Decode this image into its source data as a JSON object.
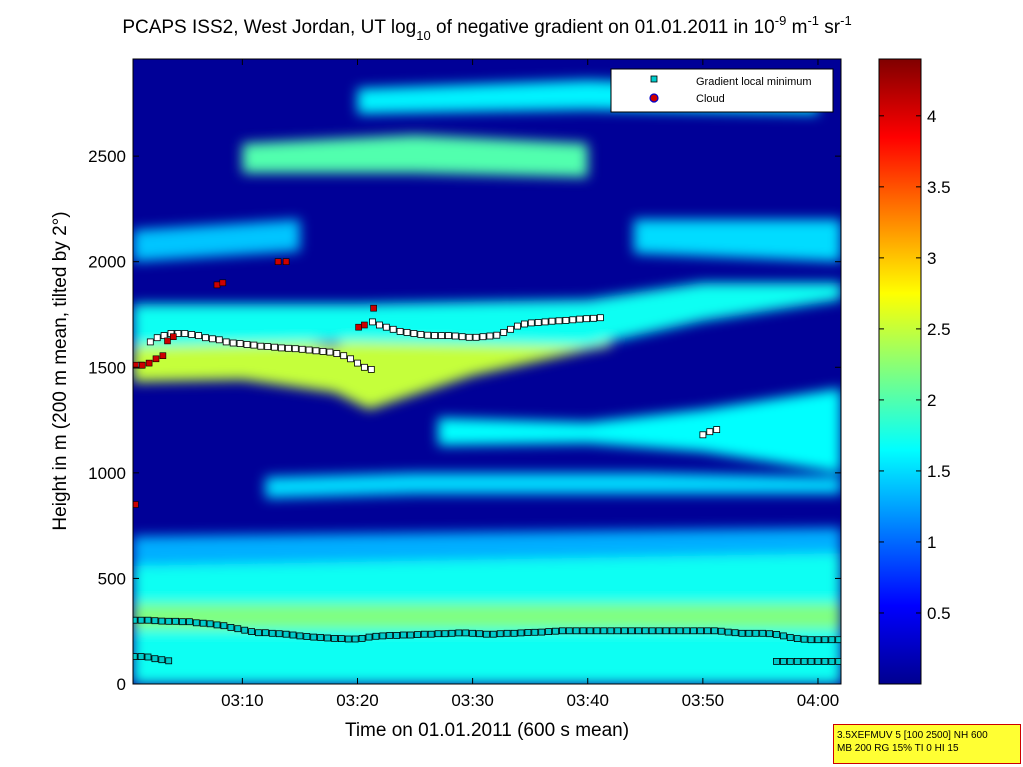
{
  "chart_data": {
    "type": "heatmap",
    "title": "PCAPS ISS2, West Jordan, UT log10 of negative gradient on 01.01.2011 in 10-9 m-1 sr-1",
    "title_parts": {
      "prefix": "PCAPS ISS2, West Jordan, UT log",
      "log_base": "10",
      "middle": " of negative gradient on 01.01.2011 in 10",
      "exp1": "-9",
      "unit1": " m",
      "exp2": "-1",
      "unit2": " sr",
      "exp3": "-1"
    },
    "xlabel": "Time on 01.01.2011 (600 s mean)",
    "ylabel": "Height in m (200 m mean, tilted by 2°)",
    "x_ticks": [
      "03:10",
      "03:20",
      "03:30",
      "03:40",
      "03:50",
      "04:00"
    ],
    "y_ticks": [
      "0",
      "500",
      "1000",
      "1500",
      "2000",
      "2500"
    ],
    "x_range_minutes": [
      0.5,
      62
    ],
    "y_range_m": [
      0,
      2960
    ],
    "colorbar_ticks": [
      "0.5",
      "1",
      "1.5",
      "2",
      "2.5",
      "3",
      "3.5",
      "4"
    ],
    "colorbar_range": [
      0,
      4.4
    ],
    "colormap": "jet",
    "background_field_level": 0.1,
    "layers": [
      {
        "x": [
          0.5,
          62
        ],
        "y0": [
          0,
          0
        ],
        "y1": [
          80,
          80
        ],
        "level": 2.25
      },
      {
        "x": [
          0.5,
          62
        ],
        "y0": [
          0,
          0
        ],
        "y1": [
          560,
          620
        ],
        "level": 1.7
      },
      {
        "x": [
          0.5,
          62
        ],
        "y0": [
          260,
          260
        ],
        "y1": [
          380,
          380
        ],
        "level": 2.2
      },
      {
        "x": [
          0.5,
          62
        ],
        "y0": [
          560,
          620
        ],
        "y1": [
          700,
          740
        ],
        "level": 1.3
      },
      {
        "x": [
          12,
          25,
          45,
          62
        ],
        "y0": [
          880,
          900,
          900,
          900
        ],
        "y1": [
          980,
          1000,
          1000,
          980
        ],
        "level": 1.5
      },
      {
        "x": [
          27,
          40,
          50,
          62
        ],
        "y0": [
          1130,
          1140,
          1100,
          1000
        ],
        "y1": [
          1260,
          1240,
          1300,
          1400
        ],
        "level": 1.65
      },
      {
        "x": [
          0.5,
          10,
          18,
          21,
          30,
          40,
          42
        ],
        "y0": [
          1430,
          1440,
          1380,
          1300,
          1460,
          1580,
          1600
        ],
        "y1": [
          1660,
          1660,
          1600,
          1700,
          1700,
          1790,
          1800
        ],
        "level": 2.5
      },
      {
        "x": [
          0.5,
          20,
          40,
          50,
          62
        ],
        "y0": [
          1600,
          1620,
          1600,
          1720,
          1820
        ],
        "y1": [
          1800,
          1800,
          1820,
          1900,
          1900
        ],
        "level": 1.7
      },
      {
        "x": [
          0.5,
          15
        ],
        "y0": [
          2000,
          2050
        ],
        "y1": [
          2150,
          2200
        ],
        "level": 1.4
      },
      {
        "x": [
          44,
          62
        ],
        "y0": [
          2040,
          2000
        ],
        "y1": [
          2200,
          2200
        ],
        "level": 1.5
      },
      {
        "x": [
          10,
          25,
          40
        ],
        "y0": [
          2420,
          2420,
          2400
        ],
        "y1": [
          2560,
          2600,
          2560
        ],
        "level": 2.0
      },
      {
        "x": [
          20,
          40,
          60
        ],
        "y0": [
          2700,
          2720,
          2700
        ],
        "y1": [
          2820,
          2860,
          2820
        ],
        "level": 1.6
      }
    ],
    "series": [
      {
        "name": "Gradient local minimum",
        "marker": "square",
        "color": "#00cccc",
        "points": [
          {
            "x": 0.6,
            "y": 302
          },
          {
            "x": 1.2,
            "y": 302
          },
          {
            "x": 1.8,
            "y": 302
          },
          {
            "x": 2.4,
            "y": 300
          },
          {
            "x": 3.0,
            "y": 298
          },
          {
            "x": 3.6,
            "y": 297
          },
          {
            "x": 4.2,
            "y": 297
          },
          {
            "x": 4.8,
            "y": 295
          },
          {
            "x": 5.4,
            "y": 295
          },
          {
            "x": 6.0,
            "y": 290
          },
          {
            "x": 6.6,
            "y": 288
          },
          {
            "x": 7.2,
            "y": 285
          },
          {
            "x": 7.8,
            "y": 280
          },
          {
            "x": 8.4,
            "y": 276
          },
          {
            "x": 9.0,
            "y": 268
          },
          {
            "x": 9.6,
            "y": 262
          },
          {
            "x": 10.2,
            "y": 255
          },
          {
            "x": 10.8,
            "y": 248
          },
          {
            "x": 11.4,
            "y": 243
          },
          {
            "x": 12.0,
            "y": 243
          },
          {
            "x": 12.6,
            "y": 240
          },
          {
            "x": 13.2,
            "y": 238
          },
          {
            "x": 13.8,
            "y": 236
          },
          {
            "x": 14.4,
            "y": 232
          },
          {
            "x": 15.0,
            "y": 228
          },
          {
            "x": 15.6,
            "y": 225
          },
          {
            "x": 16.2,
            "y": 222
          },
          {
            "x": 16.8,
            "y": 220
          },
          {
            "x": 17.4,
            "y": 218
          },
          {
            "x": 18.0,
            "y": 216
          },
          {
            "x": 18.6,
            "y": 215
          },
          {
            "x": 19.2,
            "y": 213
          },
          {
            "x": 19.8,
            "y": 213
          },
          {
            "x": 20.4,
            "y": 216
          },
          {
            "x": 21.0,
            "y": 222
          },
          {
            "x": 21.6,
            "y": 226
          },
          {
            "x": 22.2,
            "y": 228
          },
          {
            "x": 22.8,
            "y": 230
          },
          {
            "x": 23.4,
            "y": 230
          },
          {
            "x": 24.0,
            "y": 232
          },
          {
            "x": 24.6,
            "y": 232
          },
          {
            "x": 25.2,
            "y": 234
          },
          {
            "x": 25.8,
            "y": 236
          },
          {
            "x": 26.4,
            "y": 236
          },
          {
            "x": 27.0,
            "y": 238
          },
          {
            "x": 27.6,
            "y": 238
          },
          {
            "x": 28.2,
            "y": 240
          },
          {
            "x": 28.8,
            "y": 242
          },
          {
            "x": 29.4,
            "y": 242
          },
          {
            "x": 30.0,
            "y": 240
          },
          {
            "x": 30.6,
            "y": 238
          },
          {
            "x": 31.2,
            "y": 236
          },
          {
            "x": 31.8,
            "y": 236
          },
          {
            "x": 32.4,
            "y": 238
          },
          {
            "x": 33.0,
            "y": 240
          },
          {
            "x": 33.6,
            "y": 240
          },
          {
            "x": 34.2,
            "y": 242
          },
          {
            "x": 34.8,
            "y": 244
          },
          {
            "x": 35.4,
            "y": 245
          },
          {
            "x": 36.0,
            "y": 246
          },
          {
            "x": 36.6,
            "y": 248
          },
          {
            "x": 37.2,
            "y": 250
          },
          {
            "x": 37.8,
            "y": 252
          },
          {
            "x": 38.4,
            "y": 252
          },
          {
            "x": 39.0,
            "y": 252
          },
          {
            "x": 39.6,
            "y": 252
          },
          {
            "x": 40.2,
            "y": 252
          },
          {
            "x": 40.8,
            "y": 252
          },
          {
            "x": 41.4,
            "y": 252
          },
          {
            "x": 42.0,
            "y": 252
          },
          {
            "x": 42.6,
            "y": 252
          },
          {
            "x": 43.2,
            "y": 252
          },
          {
            "x": 43.8,
            "y": 252
          },
          {
            "x": 44.4,
            "y": 252
          },
          {
            "x": 45.0,
            "y": 252
          },
          {
            "x": 45.6,
            "y": 252
          },
          {
            "x": 46.2,
            "y": 252
          },
          {
            "x": 46.8,
            "y": 252
          },
          {
            "x": 47.4,
            "y": 252
          },
          {
            "x": 48.0,
            "y": 252
          },
          {
            "x": 48.6,
            "y": 252
          },
          {
            "x": 49.2,
            "y": 252
          },
          {
            "x": 49.8,
            "y": 252
          },
          {
            "x": 50.4,
            "y": 252
          },
          {
            "x": 51.0,
            "y": 252
          },
          {
            "x": 51.6,
            "y": 250
          },
          {
            "x": 52.2,
            "y": 246
          },
          {
            "x": 52.8,
            "y": 243
          },
          {
            "x": 53.4,
            "y": 240
          },
          {
            "x": 54.0,
            "y": 240
          },
          {
            "x": 54.6,
            "y": 240
          },
          {
            "x": 55.2,
            "y": 240
          },
          {
            "x": 55.8,
            "y": 238
          },
          {
            "x": 56.4,
            "y": 235
          },
          {
            "x": 57.0,
            "y": 228
          },
          {
            "x": 57.6,
            "y": 220
          },
          {
            "x": 58.2,
            "y": 215
          },
          {
            "x": 58.8,
            "y": 212
          },
          {
            "x": 59.4,
            "y": 210
          },
          {
            "x": 60.0,
            "y": 210
          },
          {
            "x": 60.6,
            "y": 210
          },
          {
            "x": 61.2,
            "y": 210
          },
          {
            "x": 61.8,
            "y": 210
          },
          {
            "x": 0.6,
            "y": 130
          },
          {
            "x": 1.2,
            "y": 130
          },
          {
            "x": 1.8,
            "y": 128
          },
          {
            "x": 2.4,
            "y": 120
          },
          {
            "x": 3.0,
            "y": 115
          },
          {
            "x": 3.6,
            "y": 110
          },
          {
            "x": 56.4,
            "y": 107
          },
          {
            "x": 57.0,
            "y": 107
          },
          {
            "x": 57.6,
            "y": 107
          },
          {
            "x": 58.2,
            "y": 107
          },
          {
            "x": 58.8,
            "y": 107
          },
          {
            "x": 59.4,
            "y": 107
          },
          {
            "x": 60.0,
            "y": 107
          },
          {
            "x": 60.6,
            "y": 107
          },
          {
            "x": 61.2,
            "y": 107
          },
          {
            "x": 61.8,
            "y": 107
          },
          {
            "x": 1.2,
            "y": 1510
          },
          {
            "x": 2.0,
            "y": 1620
          },
          {
            "x": 2.6,
            "y": 1640
          },
          {
            "x": 3.2,
            "y": 1650
          },
          {
            "x": 3.8,
            "y": 1660
          },
          {
            "x": 4.4,
            "y": 1660
          },
          {
            "x": 5.0,
            "y": 1660
          },
          {
            "x": 5.6,
            "y": 1655
          },
          {
            "x": 6.2,
            "y": 1650
          },
          {
            "x": 6.8,
            "y": 1640
          },
          {
            "x": 7.4,
            "y": 1635
          },
          {
            "x": 8.0,
            "y": 1630
          },
          {
            "x": 8.6,
            "y": 1620
          },
          {
            "x": 9.2,
            "y": 1615
          },
          {
            "x": 9.8,
            "y": 1612
          },
          {
            "x": 10.4,
            "y": 1608
          },
          {
            "x": 11.0,
            "y": 1605
          },
          {
            "x": 11.6,
            "y": 1600
          },
          {
            "x": 12.2,
            "y": 1598
          },
          {
            "x": 12.8,
            "y": 1595
          },
          {
            "x": 13.4,
            "y": 1592
          },
          {
            "x": 14.0,
            "y": 1590
          },
          {
            "x": 14.6,
            "y": 1588
          },
          {
            "x": 15.2,
            "y": 1585
          },
          {
            "x": 15.8,
            "y": 1582
          },
          {
            "x": 16.4,
            "y": 1578
          },
          {
            "x": 17.0,
            "y": 1575
          },
          {
            "x": 17.6,
            "y": 1572
          },
          {
            "x": 18.2,
            "y": 1565
          },
          {
            "x": 18.8,
            "y": 1555
          },
          {
            "x": 19.4,
            "y": 1540
          },
          {
            "x": 20.0,
            "y": 1520
          },
          {
            "x": 20.6,
            "y": 1500
          },
          {
            "x": 21.2,
            "y": 1490
          },
          {
            "x": 21.3,
            "y": 1715
          },
          {
            "x": 21.9,
            "y": 1700
          },
          {
            "x": 22.5,
            "y": 1690
          },
          {
            "x": 23.1,
            "y": 1680
          },
          {
            "x": 23.7,
            "y": 1670
          },
          {
            "x": 24.3,
            "y": 1665
          },
          {
            "x": 24.9,
            "y": 1660
          },
          {
            "x": 25.5,
            "y": 1655
          },
          {
            "x": 26.1,
            "y": 1652
          },
          {
            "x": 26.7,
            "y": 1650
          },
          {
            "x": 27.3,
            "y": 1650
          },
          {
            "x": 27.9,
            "y": 1650
          },
          {
            "x": 28.5,
            "y": 1648
          },
          {
            "x": 29.1,
            "y": 1645
          },
          {
            "x": 29.7,
            "y": 1642
          },
          {
            "x": 30.3,
            "y": 1642
          },
          {
            "x": 30.9,
            "y": 1645
          },
          {
            "x": 31.5,
            "y": 1648
          },
          {
            "x": 32.1,
            "y": 1652
          },
          {
            "x": 32.7,
            "y": 1665
          },
          {
            "x": 33.3,
            "y": 1680
          },
          {
            "x": 33.9,
            "y": 1695
          },
          {
            "x": 34.5,
            "y": 1705
          },
          {
            "x": 35.1,
            "y": 1710
          },
          {
            "x": 35.7,
            "y": 1712
          },
          {
            "x": 36.3,
            "y": 1715
          },
          {
            "x": 36.9,
            "y": 1718
          },
          {
            "x": 37.5,
            "y": 1720
          },
          {
            "x": 38.1,
            "y": 1722
          },
          {
            "x": 38.7,
            "y": 1725
          },
          {
            "x": 39.3,
            "y": 1728
          },
          {
            "x": 39.9,
            "y": 1730
          },
          {
            "x": 40.5,
            "y": 1732
          },
          {
            "x": 41.1,
            "y": 1735
          },
          {
            "x": 50.0,
            "y": 1180
          },
          {
            "x": 50.6,
            "y": 1195
          },
          {
            "x": 51.2,
            "y": 1205
          }
        ]
      },
      {
        "name": "Cloud",
        "marker": "circle",
        "color": "#cc0000",
        "points": [
          {
            "x": 0.7,
            "y": 1510
          },
          {
            "x": 1.3,
            "y": 1510
          },
          {
            "x": 1.9,
            "y": 1520
          },
          {
            "x": 2.5,
            "y": 1540
          },
          {
            "x": 3.1,
            "y": 1555
          },
          {
            "x": 3.5,
            "y": 1625
          },
          {
            "x": 4.0,
            "y": 1645
          },
          {
            "x": 7.8,
            "y": 1890
          },
          {
            "x": 8.3,
            "y": 1900
          },
          {
            "x": 13.1,
            "y": 2000
          },
          {
            "x": 13.8,
            "y": 2000
          },
          {
            "x": 20.1,
            "y": 1690
          },
          {
            "x": 20.6,
            "y": 1700
          },
          {
            "x": 21.4,
            "y": 1780
          },
          {
            "x": 0.7,
            "y": 850
          }
        ]
      }
    ],
    "legend": {
      "position": "top-right",
      "entries": [
        "Gradient local minimum",
        "Cloud"
      ]
    }
  },
  "info_box": {
    "line1": "3.5XEFMUV 5 [100 2500] NH 600",
    "line2": "MB 200 RG 15% TI 0 HI 15"
  }
}
